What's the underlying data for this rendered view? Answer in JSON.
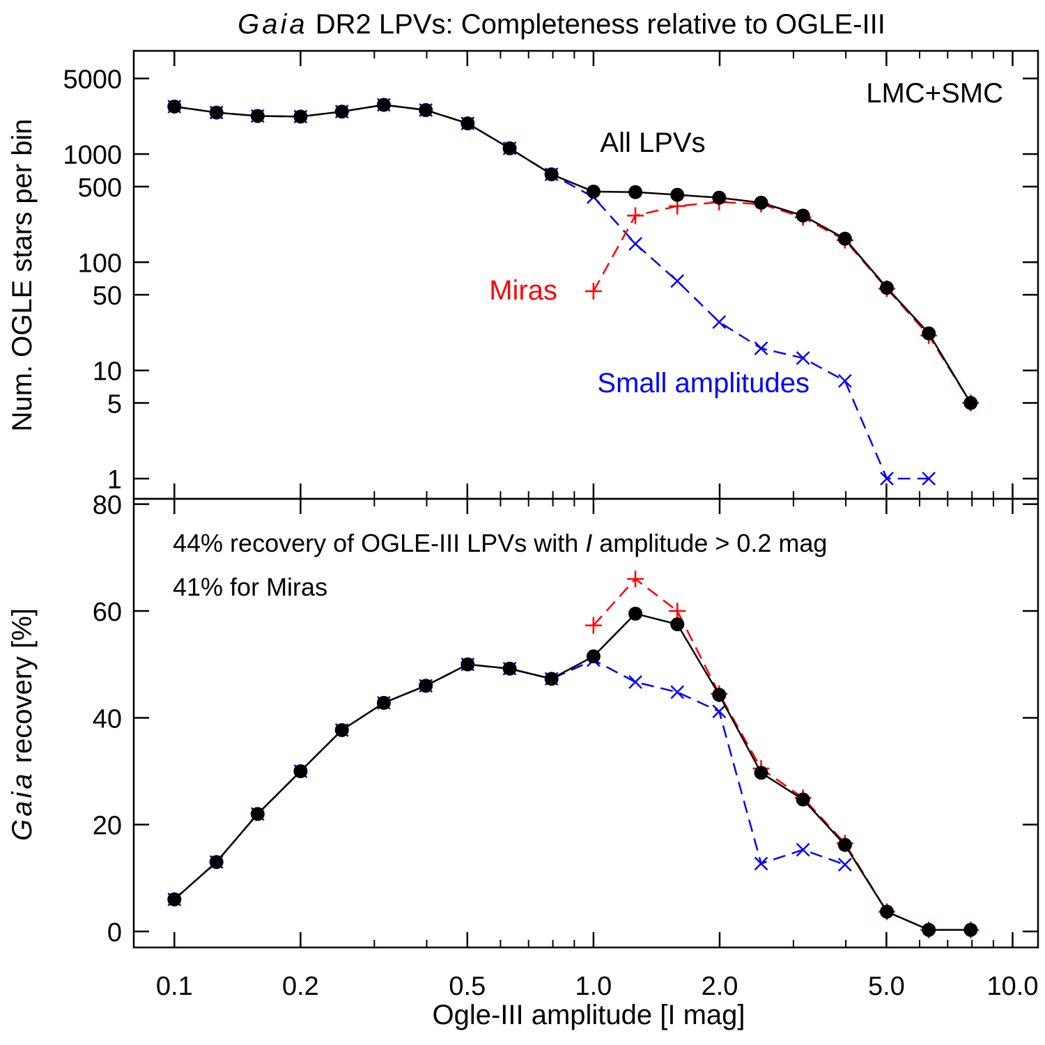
{
  "title": {
    "italic": "Gaia",
    "rest": " DR2 LPVs: Completeness relative to OGLE-III"
  },
  "colors": {
    "all": "#000000",
    "miras": "#ff0000",
    "small": "#0000ff"
  },
  "chart_data": [
    {
      "type": "line",
      "panel": "top",
      "xscale": "log",
      "yscale": "log",
      "xlim": [
        0.08,
        11.5
      ],
      "ylim": [
        0.65,
        9000
      ],
      "ylabel": "Num. OGLE stars per bin",
      "yticks": [
        1,
        5,
        10,
        50,
        100,
        500,
        1000,
        5000
      ],
      "ytick_labels": [
        "1",
        "5",
        "10",
        "50",
        "100",
        "500",
        "1000",
        "5000"
      ],
      "region_label": "LMC+SMC",
      "series": [
        {
          "name": "All LPVs",
          "color": "#000000",
          "style": "solid",
          "marker": "dot",
          "x": [
            0.1,
            0.126,
            0.158,
            0.2,
            0.251,
            0.316,
            0.398,
            0.501,
            0.631,
            0.794,
            1.0,
            1.259,
            1.585,
            1.995,
            2.512,
            3.162,
            3.981,
            5.012,
            6.31,
            7.943
          ],
          "y": [
            2750,
            2420,
            2250,
            2220,
            2470,
            2850,
            2550,
            1920,
            1130,
            650,
            450,
            445,
            420,
            395,
            355,
            270,
            165,
            58,
            22,
            5
          ]
        },
        {
          "name": "Miras",
          "color": "#ff0000",
          "style": "dashed",
          "marker": "plus",
          "x": [
            1.0,
            1.259,
            1.585,
            1.995,
            2.512,
            3.162,
            3.981,
            5.012,
            6.31,
            7.943
          ],
          "y": [
            54,
            270,
            330,
            360,
            345,
            260,
            160,
            57,
            21,
            5
          ]
        },
        {
          "name": "Small amplitudes",
          "color": "#0000ff",
          "style": "dashed",
          "marker": "x",
          "x": [
            0.1,
            0.126,
            0.158,
            0.2,
            0.251,
            0.316,
            0.398,
            0.501,
            0.631,
            0.794,
            1.0,
            1.259,
            1.585,
            1.995,
            2.512,
            3.162,
            3.981,
            5.012,
            6.31
          ],
          "y": [
            2750,
            2420,
            2250,
            2220,
            2470,
            2850,
            2550,
            1920,
            1130,
            650,
            400,
            148,
            67,
            28,
            16,
            13,
            8,
            1,
            1
          ]
        }
      ]
    },
    {
      "type": "line",
      "panel": "bottom",
      "xscale": "log",
      "xlim": [
        0.08,
        11.5
      ],
      "ylim": [
        -3,
        81
      ],
      "xlabel": "Ogle-III amplitude  [I mag]",
      "ylabel": {
        "italic": "Gaia",
        "rest": " recovery [%]"
      },
      "xticks": [
        0.1,
        0.2,
        0.5,
        1.0,
        2.0,
        5.0,
        10.0
      ],
      "xtick_labels": [
        "0.1",
        "0.2",
        "0.5",
        "1.0",
        "2.0",
        "5.0",
        "10.0"
      ],
      "yticks": [
        0,
        20,
        40,
        60,
        80
      ],
      "ytick_labels": [
        "0",
        "20",
        "40",
        "60",
        "80"
      ],
      "annotations": [
        {
          "before": "44% recovery of OGLE-III LPVs with ",
          "italic": "I",
          "after": " amplitude > 0.2 mag"
        },
        {
          "before": "41% for Miras",
          "italic": "",
          "after": ""
        }
      ],
      "series": [
        {
          "name": "All LPVs",
          "color": "#000000",
          "style": "solid",
          "marker": "dot",
          "x": [
            0.1,
            0.126,
            0.158,
            0.2,
            0.251,
            0.316,
            0.398,
            0.501,
            0.631,
            0.794,
            1.0,
            1.259,
            1.585,
            1.995,
            2.512,
            3.162,
            3.981,
            5.012,
            6.31,
            7.943
          ],
          "y": [
            6,
            13,
            22,
            30,
            37.7,
            42.8,
            46,
            50,
            49.2,
            47.3,
            51.5,
            59.5,
            57.5,
            44.3,
            29.7,
            24.7,
            16.2,
            3.7,
            0.3,
            0.3
          ]
        },
        {
          "name": "Miras",
          "color": "#ff0000",
          "style": "dashed",
          "marker": "plus",
          "x": [
            1.0,
            1.259,
            1.585,
            1.995,
            2.512,
            3.162,
            3.981,
            5.012,
            6.31,
            7.943
          ],
          "y": [
            57.3,
            66,
            60,
            44.5,
            30.5,
            25,
            16.5,
            3.7,
            0.3,
            0.3
          ]
        },
        {
          "name": "Small amplitudes",
          "color": "#0000ff",
          "style": "dashed",
          "marker": "x",
          "x": [
            0.1,
            0.126,
            0.158,
            0.2,
            0.251,
            0.316,
            0.398,
            0.501,
            0.631,
            0.794,
            1.0,
            1.259,
            1.585,
            1.995,
            2.512,
            3.162,
            3.981
          ],
          "y": [
            6,
            13,
            22,
            30,
            37.7,
            42.8,
            46,
            50,
            49.2,
            47.3,
            50.8,
            46.7,
            44.8,
            41.2,
            12.7,
            15.3,
            12.5
          ]
        }
      ]
    }
  ]
}
